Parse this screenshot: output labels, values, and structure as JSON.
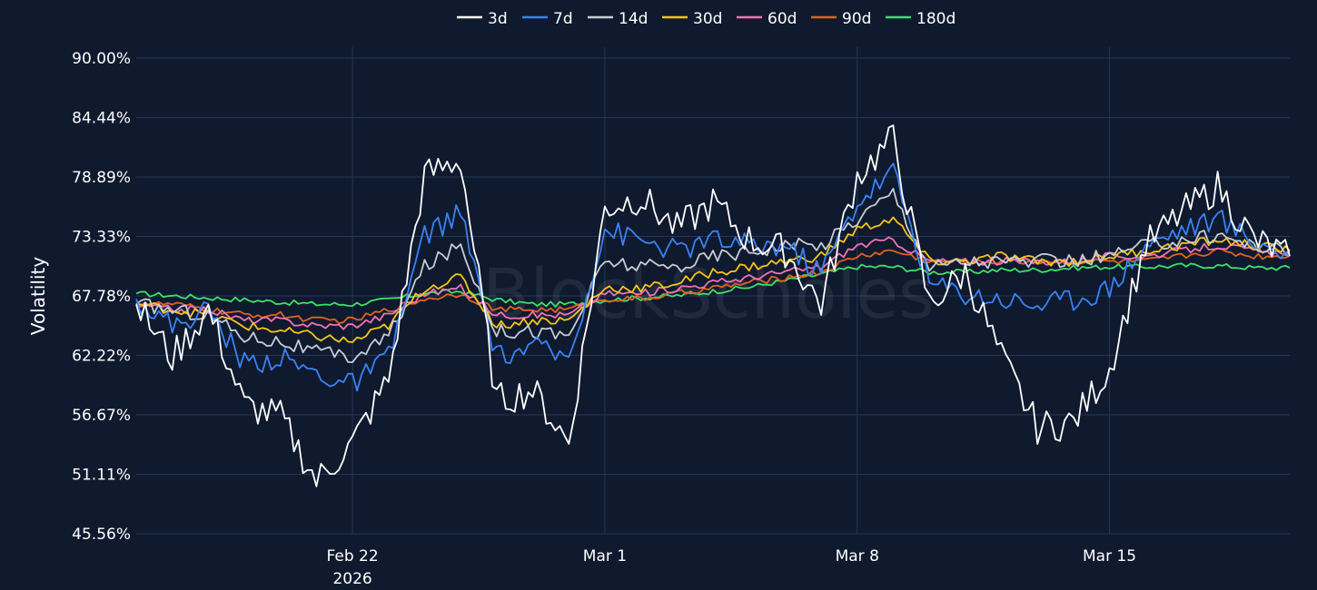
{
  "watermark": "BlockScholes",
  "colors": {
    "background": "#0f1a2e",
    "grid": "#26365a",
    "text": "#ffffff"
  },
  "chart_data": {
    "type": "line",
    "title": "",
    "xlabel": "",
    "ylabel": "Volatility",
    "ylim": [
      45.56,
      90.0
    ],
    "yticks": [
      "45.56%",
      "51.11%",
      "56.67%",
      "62.22%",
      "67.78%",
      "73.33%",
      "78.89%",
      "84.44%",
      "90.00%"
    ],
    "xlim": [
      "2026-02-16",
      "2026-03-20"
    ],
    "xticks": [
      {
        "date": "2026-02-22",
        "label": "Feb 22",
        "sublabel": "2026"
      },
      {
        "date": "2026-03-01",
        "label": "Mar 1",
        "sublabel": ""
      },
      {
        "date": "2026-03-08",
        "label": "Mar 8",
        "sublabel": ""
      },
      {
        "date": "2026-03-15",
        "label": "Mar 15",
        "sublabel": ""
      }
    ],
    "grid": true,
    "legend_position": "top-center",
    "x": [
      "2026-02-16",
      "2026-02-17",
      "2026-02-18",
      "2026-02-19",
      "2026-02-20",
      "2026-02-21",
      "2026-02-22",
      "2026-02-23",
      "2026-02-24",
      "2026-02-25",
      "2026-02-26",
      "2026-02-27",
      "2026-02-28",
      "2026-03-01",
      "2026-03-02",
      "2026-03-03",
      "2026-03-04",
      "2026-03-05",
      "2026-03-06",
      "2026-03-07",
      "2026-03-08",
      "2026-03-09",
      "2026-03-10",
      "2026-03-11",
      "2026-03-12",
      "2026-03-13",
      "2026-03-14",
      "2026-03-15",
      "2026-03-16",
      "2026-03-17",
      "2026-03-18",
      "2026-03-19",
      "2026-03-20"
    ],
    "series": [
      {
        "name": "3d",
        "color": "#ffffff",
        "values": [
          67.0,
          62.0,
          66.5,
          57.5,
          56.5,
          50.5,
          54.0,
          60.0,
          79.0,
          80.5,
          58.0,
          59.0,
          54.0,
          76.0,
          77.0,
          74.0,
          76.5,
          73.0,
          72.0,
          67.0,
          79.0,
          82.5,
          67.0,
          70.0,
          62.0,
          55.5,
          56.0,
          61.0,
          72.5,
          75.5,
          78.0,
          73.0,
          71.5
        ]
      },
      {
        "name": "7d",
        "color": "#3b82f6",
        "values": [
          67.5,
          65.0,
          66.5,
          61.5,
          62.0,
          60.5,
          59.5,
          62.0,
          73.5,
          75.5,
          62.0,
          63.0,
          62.0,
          74.0,
          73.0,
          72.0,
          73.0,
          72.5,
          72.5,
          70.0,
          76.5,
          79.5,
          69.0,
          68.0,
          67.5,
          67.0,
          67.5,
          68.5,
          72.5,
          74.0,
          75.0,
          73.0,
          71.5
        ]
      },
      {
        "name": "14d",
        "color": "#c7ccd6",
        "values": [
          67.0,
          66.5,
          66.0,
          64.0,
          63.5,
          62.5,
          62.0,
          64.0,
          70.5,
          72.5,
          64.5,
          64.5,
          64.0,
          71.0,
          70.5,
          70.5,
          71.5,
          72.0,
          72.5,
          72.5,
          75.0,
          77.5,
          70.5,
          71.0,
          71.0,
          71.0,
          71.0,
          71.5,
          72.5,
          73.0,
          73.5,
          72.5,
          72.0
        ]
      },
      {
        "name": "30d",
        "color": "#f5c518",
        "values": [
          67.0,
          66.5,
          66.0,
          65.0,
          64.5,
          64.0,
          63.5,
          65.0,
          68.5,
          69.5,
          65.0,
          65.5,
          65.5,
          68.5,
          68.5,
          69.0,
          70.0,
          70.5,
          71.0,
          71.5,
          74.0,
          75.0,
          71.0,
          71.0,
          71.5,
          71.0,
          71.0,
          71.5,
          72.0,
          72.5,
          73.0,
          72.5,
          72.0
        ]
      },
      {
        "name": "60d",
        "color": "#f472b6",
        "values": [
          67.0,
          66.5,
          66.5,
          65.5,
          65.5,
          65.0,
          65.0,
          66.0,
          68.0,
          68.5,
          66.0,
          66.0,
          66.0,
          68.0,
          68.0,
          68.5,
          69.0,
          69.5,
          70.0,
          70.5,
          72.5,
          73.0,
          71.0,
          71.0,
          71.0,
          71.0,
          71.0,
          71.5,
          71.5,
          72.0,
          72.5,
          72.0,
          71.5
        ]
      },
      {
        "name": "90d",
        "color": "#e0641e",
        "values": [
          67.0,
          67.0,
          66.5,
          66.0,
          66.0,
          65.5,
          65.5,
          66.5,
          67.5,
          68.0,
          66.5,
          66.5,
          66.5,
          67.5,
          67.5,
          68.0,
          68.5,
          69.0,
          69.5,
          70.0,
          71.5,
          72.0,
          71.0,
          71.0,
          71.0,
          71.0,
          71.0,
          71.0,
          71.0,
          71.5,
          72.0,
          71.5,
          71.5
        ]
      },
      {
        "name": "180d",
        "color": "#3ee06a",
        "values": [
          68.0,
          67.8,
          67.6,
          67.4,
          67.2,
          67.0,
          67.0,
          67.4,
          68.0,
          68.2,
          67.4,
          67.0,
          67.0,
          67.4,
          67.6,
          67.8,
          68.2,
          68.6,
          69.2,
          69.8,
          70.5,
          70.5,
          70.0,
          70.0,
          70.2,
          70.2,
          70.4,
          70.5,
          70.5,
          70.6,
          70.6,
          70.4,
          70.4
        ]
      }
    ]
  }
}
